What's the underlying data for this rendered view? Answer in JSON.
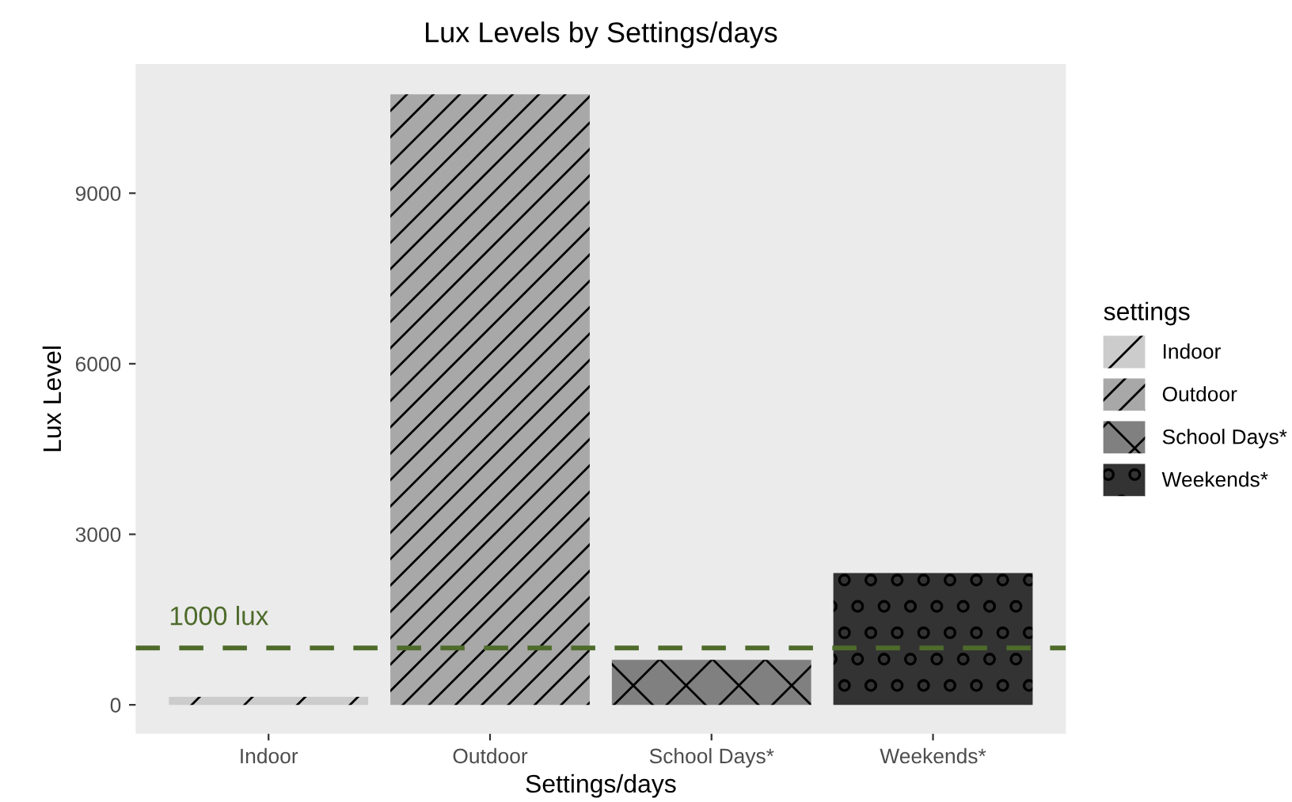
{
  "chart_data": {
    "type": "bar",
    "title": "Lux Levels by Settings/days",
    "xlabel": "Settings/days",
    "ylabel": "Lux Level",
    "legend_title": "settings",
    "categories": [
      "Indoor",
      "Outdoor",
      "School Days*",
      "Weekends*"
    ],
    "series": [
      {
        "name": "Indoor",
        "color": "#cccccc",
        "values": [
          140,
          null,
          null,
          null
        ]
      },
      {
        "name": "Outdoor",
        "color": "#a8a8a8",
        "values": [
          null,
          10740,
          null,
          null
        ]
      },
      {
        "name": "School Days*",
        "color": "#808080",
        "values": [
          null,
          null,
          790,
          null
        ]
      },
      {
        "name": "Weekends*",
        "color": "#333333",
        "values": [
          null,
          null,
          null,
          2320
        ]
      }
    ],
    "ylim": [
      -510,
      11270
    ],
    "yticks": [
      0,
      3000,
      6000,
      9000
    ],
    "grid": false,
    "legend": "right",
    "ref_lines": [
      {
        "axis": "y",
        "value": 1000,
        "label": "1000 lux",
        "color": "#4e6b2b",
        "line_style": "dashed"
      }
    ]
  }
}
